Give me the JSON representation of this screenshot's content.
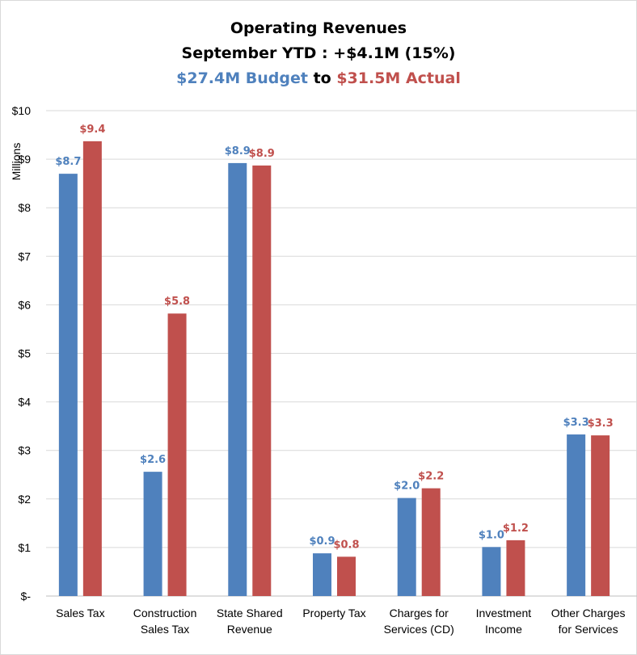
{
  "chart_data": {
    "type": "bar",
    "title": "Operating Revenues",
    "subtitle": "September YTD : +$4.1M (15%)",
    "subtitle2": {
      "budget_text": "$27.4M Budget",
      "joiner": " to ",
      "actual_text": "$31.5M Actual"
    },
    "ylabel": "Millions",
    "ylim": [
      0,
      10
    ],
    "yticks": [
      "$-",
      "$1",
      "$2",
      "$3",
      "$4",
      "$5",
      "$6",
      "$7",
      "$8",
      "$9",
      "$10"
    ],
    "grid": true,
    "categories": [
      [
        "Sales Tax"
      ],
      [
        "Construction",
        "Sales Tax"
      ],
      [
        "State Shared",
        "Revenue"
      ],
      [
        "Property Tax"
      ],
      [
        "Charges for",
        "Services (CD)"
      ],
      [
        "Investment",
        "Income"
      ],
      [
        "Other Charges",
        "for Services"
      ]
    ],
    "series": [
      {
        "name": "Budget",
        "color": "#4f81bd",
        "values": [
          8.7,
          2.56,
          8.92,
          0.88,
          2.02,
          1.01,
          3.33
        ],
        "labels": [
          "$8.7",
          "$2.6",
          "$8.9",
          "$0.9",
          "$2.0",
          "$1.0",
          "$3.3"
        ]
      },
      {
        "name": "Actual",
        "color": "#c0504d",
        "values": [
          9.37,
          5.82,
          8.87,
          0.81,
          2.22,
          1.15,
          3.31
        ],
        "labels": [
          "$9.4",
          "$5.8",
          "$8.9",
          "$0.8",
          "$2.2",
          "$1.2",
          "$3.3"
        ]
      }
    ]
  }
}
